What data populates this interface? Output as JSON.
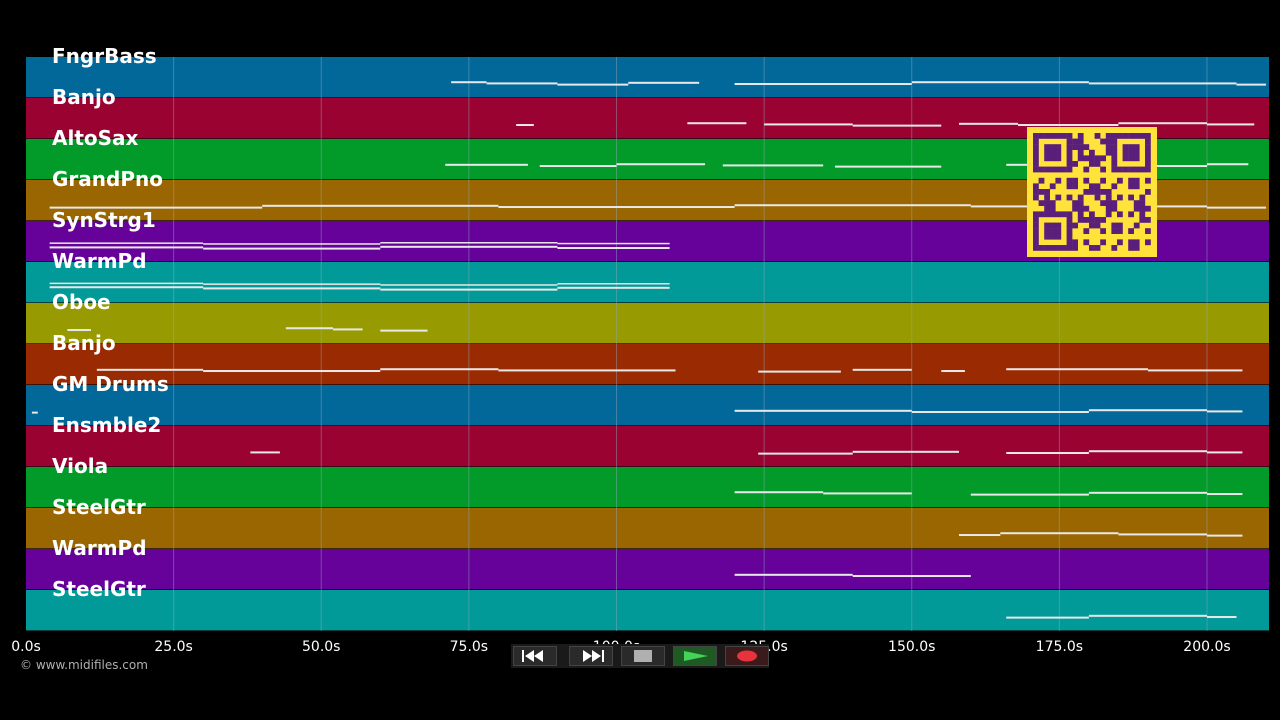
{
  "tracks": [
    {
      "name": "FngrBass",
      "color": "#02689a"
    },
    {
      "name": "Banjo",
      "color": "#9a0232"
    },
    {
      "name": "AltoSax",
      "color": "#029a28"
    },
    {
      "name": "GrandPno",
      "color": "#9a6602"
    },
    {
      "name": "SynStrg1",
      "color": "#66029a"
    },
    {
      "name": "WarmPd",
      "color": "#029a98"
    },
    {
      "name": "Oboe",
      "color": "#989a02"
    },
    {
      "name": "Banjo",
      "color": "#9a2a02"
    },
    {
      "name": "GM Drums",
      "color": "#02689a"
    },
    {
      "name": "Ensmble2",
      "color": "#9a0232"
    },
    {
      "name": "Viola",
      "color": "#029a28"
    },
    {
      "name": "SteelGtr",
      "color": "#9a6602"
    },
    {
      "name": "WarmPd",
      "color": "#66029a"
    },
    {
      "name": "SteelGtr",
      "color": "#029a98"
    }
  ],
  "timeline": {
    "ticks": [
      "0.0s",
      "25.0s",
      "50.0s",
      "75.0s",
      "100.0s",
      "125.0s",
      "150.0s",
      "175.0s",
      "200.0s"
    ],
    "tick_values": [
      0,
      25,
      50,
      75,
      100,
      125,
      150,
      175,
      200
    ],
    "max_seconds": 210.5
  },
  "notes": [
    [
      [
        72,
        78
      ],
      [
        78,
        90
      ],
      [
        90,
        102
      ],
      [
        102,
        114
      ],
      [
        120,
        150
      ],
      [
        150,
        180
      ],
      [
        180,
        205
      ],
      [
        205,
        210
      ]
    ],
    [
      [
        83,
        86
      ],
      [
        112,
        122
      ],
      [
        125,
        140
      ],
      [
        140,
        155
      ],
      [
        158,
        168
      ],
      [
        168,
        185
      ],
      [
        185,
        200
      ],
      [
        200,
        208
      ]
    ],
    [
      [
        71,
        85
      ],
      [
        87,
        100
      ],
      [
        100,
        115
      ],
      [
        118,
        135
      ],
      [
        137,
        155
      ],
      [
        166,
        170
      ],
      [
        172,
        200
      ],
      [
        200,
        207
      ]
    ],
    [
      [
        4,
        40
      ],
      [
        40,
        80
      ],
      [
        80,
        120
      ],
      [
        120,
        160
      ],
      [
        160,
        200
      ],
      [
        200,
        210
      ]
    ],
    [
      [
        4,
        30
      ],
      [
        30,
        60
      ],
      [
        60,
        90
      ],
      [
        90,
        109
      ]
    ],
    [
      [
        4,
        30
      ],
      [
        30,
        60
      ],
      [
        60,
        90
      ],
      [
        90,
        109
      ]
    ],
    [
      [
        7,
        11
      ],
      [
        44,
        52
      ],
      [
        52,
        57
      ],
      [
        60,
        68
      ]
    ],
    [
      [
        12,
        30
      ],
      [
        30,
        60
      ],
      [
        60,
        80
      ],
      [
        80,
        110
      ],
      [
        124,
        138
      ],
      [
        140,
        150
      ],
      [
        155,
        159
      ],
      [
        166,
        190
      ],
      [
        190,
        206
      ]
    ],
    [
      [
        1,
        2
      ],
      [
        120,
        150
      ],
      [
        150,
        180
      ],
      [
        180,
        200
      ],
      [
        200,
        206
      ]
    ],
    [
      [
        38,
        43
      ],
      [
        124,
        140
      ],
      [
        140,
        158
      ],
      [
        166,
        180
      ],
      [
        180,
        200
      ],
      [
        200,
        206
      ]
    ],
    [
      [
        120,
        135
      ],
      [
        135,
        150
      ],
      [
        160,
        180
      ],
      [
        180,
        200
      ],
      [
        200,
        206
      ]
    ],
    [
      [
        158,
        165
      ],
      [
        165,
        185
      ],
      [
        185,
        200
      ],
      [
        200,
        206
      ]
    ],
    [
      [
        120,
        140
      ],
      [
        140,
        160
      ]
    ],
    [
      [
        166,
        180
      ],
      [
        180,
        200
      ],
      [
        200,
        205
      ]
    ]
  ],
  "transport": {
    "buttons": [
      "rewind",
      "fast-forward",
      "stop",
      "play",
      "record"
    ]
  },
  "copyright": "© www.midifiles.com",
  "colors": {
    "note": "#e8e8e8",
    "grid": "#8fa9b9",
    "qr_bg": "#ffe23a",
    "qr_fg": "#5a1f7a"
  }
}
